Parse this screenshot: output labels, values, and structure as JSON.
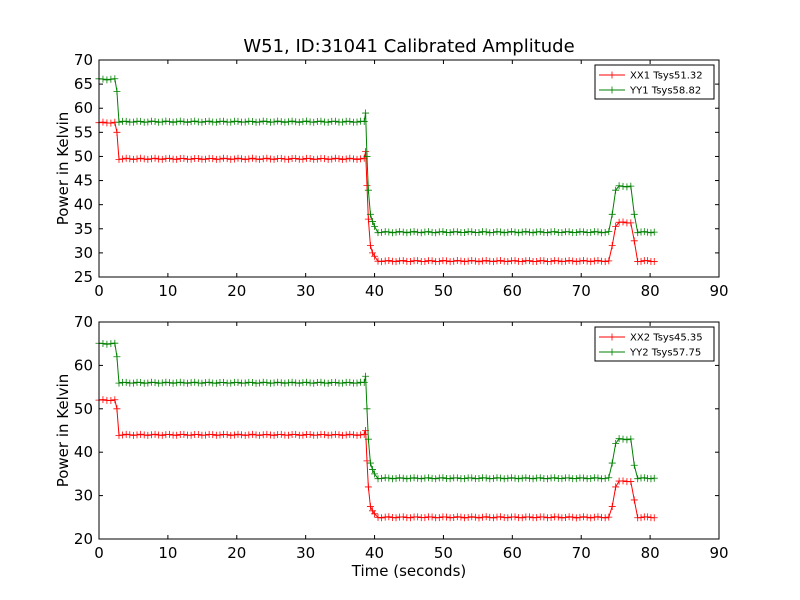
{
  "title": "W51, ID:31041 Calibrated Amplitude",
  "chart_data": [
    {
      "type": "line",
      "xlabel": "",
      "ylabel": "Power in Kelvin",
      "xlim": [
        0,
        90
      ],
      "ylim": [
        25,
        70
      ],
      "xticks": [
        0,
        10,
        20,
        30,
        40,
        50,
        60,
        70,
        80,
        90
      ],
      "yticks": [
        25,
        30,
        35,
        40,
        45,
        50,
        55,
        60,
        65,
        70
      ],
      "legend_position": "top-right",
      "series": [
        {
          "name": "XX1 Tsys51.32",
          "color": "#ff0000",
          "marker": "+",
          "segments": [
            {
              "x0": 0.0,
              "x1": 2.3,
              "y": 57.0
            },
            {
              "x0": 2.9,
              "x1": 38.5,
              "y": 49.5
            },
            {
              "x0": 40.5,
              "x1": 74.0,
              "y": 28.3
            },
            {
              "x0": 75.5,
              "x1": 77.2,
              "y": 36.3
            },
            {
              "x0": 78.2,
              "x1": 80.6,
              "y": 28.3
            }
          ],
          "transitions": [
            {
              "x": 2.6,
              "y": 55.0
            },
            {
              "x": 38.7,
              "y": 51.0
            },
            {
              "x": 38.9,
              "y": 44.0
            },
            {
              "x": 39.1,
              "y": 37.0
            },
            {
              "x": 39.4,
              "y": 31.5
            },
            {
              "x": 39.7,
              "y": 30.0
            },
            {
              "x": 40.0,
              "y": 29.3
            },
            {
              "x": 74.5,
              "y": 31.5
            },
            {
              "x": 75.0,
              "y": 35.5
            },
            {
              "x": 77.7,
              "y": 32.5
            }
          ]
        },
        {
          "name": "YY1 Tsys58.82",
          "color": "#008000",
          "marker": "+",
          "segments": [
            {
              "x0": 0.0,
              "x1": 2.3,
              "y": 66.0
            },
            {
              "x0": 2.9,
              "x1": 38.5,
              "y": 57.2
            },
            {
              "x0": 40.5,
              "x1": 74.0,
              "y": 34.3
            },
            {
              "x0": 75.5,
              "x1": 77.2,
              "y": 43.8
            },
            {
              "x0": 78.2,
              "x1": 80.6,
              "y": 34.3
            }
          ],
          "transitions": [
            {
              "x": 2.6,
              "y": 63.5
            },
            {
              "x": 38.7,
              "y": 59.0
            },
            {
              "x": 38.9,
              "y": 50.0
            },
            {
              "x": 39.1,
              "y": 43.0
            },
            {
              "x": 39.4,
              "y": 38.0
            },
            {
              "x": 39.7,
              "y": 36.5
            },
            {
              "x": 40.0,
              "y": 35.5
            },
            {
              "x": 74.5,
              "y": 38.0
            },
            {
              "x": 75.0,
              "y": 43.0
            },
            {
              "x": 77.7,
              "y": 38.0
            }
          ]
        }
      ]
    },
    {
      "type": "line",
      "xlabel": "Time (seconds)",
      "ylabel": "Power in Kelvin",
      "xlim": [
        0,
        90
      ],
      "ylim": [
        20,
        70
      ],
      "xticks": [
        0,
        10,
        20,
        30,
        40,
        50,
        60,
        70,
        80,
        90
      ],
      "yticks": [
        20,
        30,
        40,
        50,
        60,
        70
      ],
      "legend_position": "top-right",
      "series": [
        {
          "name": "XX2 Tsys45.35",
          "color": "#ff0000",
          "marker": "+",
          "segments": [
            {
              "x0": 0.0,
              "x1": 2.3,
              "y": 52.0
            },
            {
              "x0": 2.9,
              "x1": 38.5,
              "y": 44.0
            },
            {
              "x0": 40.5,
              "x1": 74.0,
              "y": 25.0
            },
            {
              "x0": 75.5,
              "x1": 77.2,
              "y": 33.3
            },
            {
              "x0": 78.2,
              "x1": 80.6,
              "y": 25.0
            }
          ],
          "transitions": [
            {
              "x": 2.6,
              "y": 50.0
            },
            {
              "x": 38.7,
              "y": 45.0
            },
            {
              "x": 38.9,
              "y": 38.0
            },
            {
              "x": 39.1,
              "y": 32.0
            },
            {
              "x": 39.4,
              "y": 27.5
            },
            {
              "x": 39.7,
              "y": 26.5
            },
            {
              "x": 40.0,
              "y": 25.8
            },
            {
              "x": 74.5,
              "y": 27.5
            },
            {
              "x": 75.0,
              "y": 32.0
            },
            {
              "x": 77.7,
              "y": 29.0
            }
          ]
        },
        {
          "name": "YY2 Tsys57.75",
          "color": "#008000",
          "marker": "+",
          "segments": [
            {
              "x0": 0.0,
              "x1": 2.3,
              "y": 65.0
            },
            {
              "x0": 2.9,
              "x1": 38.5,
              "y": 56.0
            },
            {
              "x0": 40.5,
              "x1": 74.0,
              "y": 34.0
            },
            {
              "x0": 75.5,
              "x1": 77.2,
              "y": 43.0
            },
            {
              "x0": 78.2,
              "x1": 80.6,
              "y": 34.0
            }
          ],
          "transitions": [
            {
              "x": 2.6,
              "y": 62.0
            },
            {
              "x": 38.7,
              "y": 57.5
            },
            {
              "x": 38.9,
              "y": 50.0
            },
            {
              "x": 39.1,
              "y": 43.0
            },
            {
              "x": 39.4,
              "y": 37.5
            },
            {
              "x": 39.7,
              "y": 36.0
            },
            {
              "x": 40.0,
              "y": 35.0
            },
            {
              "x": 74.5,
              "y": 37.5
            },
            {
              "x": 75.0,
              "y": 42.0
            },
            {
              "x": 77.7,
              "y": 37.0
            }
          ]
        }
      ]
    }
  ]
}
